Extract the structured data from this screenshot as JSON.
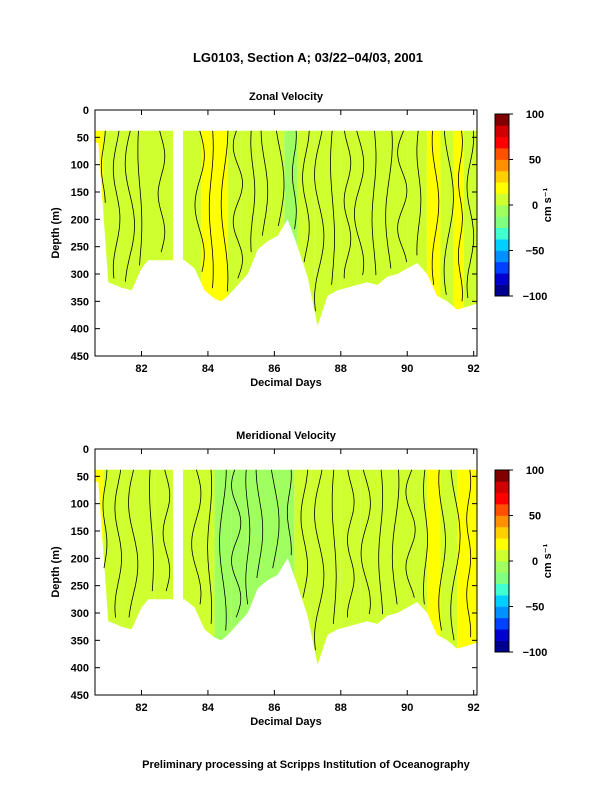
{
  "title": "LG0103, Section A; 03/22–04/03, 2001",
  "footer": "Preliminary processing at Scripps Institution of Oceanography",
  "colors": {
    "cmap": [
      "#00008f",
      "#0000d0",
      "#0040ff",
      "#0090ff",
      "#00d0ff",
      "#40ffd0",
      "#80ff80",
      "#a0ff60",
      "#d0ff30",
      "#ffff00",
      "#ffd000",
      "#ff9000",
      "#ff5000",
      "#ff0000",
      "#d00000",
      "#800000"
    ],
    "contour": "#000000",
    "axes": "#000000"
  },
  "chart_data": [
    {
      "type": "heatmap",
      "title": "Zonal Velocity",
      "xlabel": "Decimal Days",
      "ylabel": "Depth (m)",
      "xlim": [
        80.6,
        92.1
      ],
      "ylim": [
        450,
        0
      ],
      "y_reversed": true,
      "xticks": [
        82,
        84,
        86,
        88,
        90,
        92
      ],
      "yticks": [
        0,
        50,
        100,
        150,
        200,
        250,
        300,
        350,
        400,
        450
      ],
      "colorbar": {
        "label": "cm s⁻¹",
        "range": [
          -100,
          100
        ],
        "ticks": [
          100,
          50,
          0,
          -50,
          -100
        ],
        "tick_labels": [
          "100",
          "50",
          "0",
          "−50",
          "−100"
        ]
      },
      "top_depth": 38,
      "data_gaps": [
        [
          82.95,
          83.25
        ]
      ],
      "max_depth_profile": {
        "x": [
          80.7,
          81.0,
          81.2,
          81.4,
          81.7,
          82.0,
          82.2,
          82.4,
          82.7,
          83.0,
          83.3,
          83.6,
          83.9,
          84.2,
          84.4,
          84.6,
          84.9,
          85.2,
          85.5,
          85.8,
          86.1,
          86.4,
          86.7,
          87.0,
          87.3,
          87.6,
          87.9,
          88.2,
          88.5,
          88.8,
          89.1,
          89.4,
          89.7,
          90.0,
          90.3,
          90.6,
          90.9,
          91.2,
          91.5,
          91.8,
          92.05
        ],
        "depth": [
          60,
          315,
          320,
          325,
          330,
          290,
          275,
          275,
          275,
          275,
          275,
          290,
          330,
          345,
          350,
          340,
          320,
          300,
          255,
          240,
          230,
          200,
          250,
          305,
          395,
          340,
          330,
          325,
          320,
          315,
          320,
          305,
          300,
          290,
          280,
          300,
          340,
          350,
          365,
          360,
          355
        ]
      },
      "velocity_bands": [
        {
          "x0": 80.6,
          "x1": 80.85,
          "value": 22
        },
        {
          "x0": 80.85,
          "x1": 81.3,
          "value": 8
        },
        {
          "x0": 81.3,
          "x1": 81.7,
          "value": 4
        },
        {
          "x0": 81.7,
          "x1": 82.3,
          "value": 10
        },
        {
          "x0": 82.3,
          "x1": 82.95,
          "value": 8
        },
        {
          "x0": 83.25,
          "x1": 83.8,
          "value": 6
        },
        {
          "x0": 83.8,
          "x1": 84.2,
          "value": 14
        },
        {
          "x0": 84.2,
          "x1": 84.6,
          "value": 16
        },
        {
          "x0": 84.6,
          "x1": 85.0,
          "value": 8
        },
        {
          "x0": 85.0,
          "x1": 85.5,
          "value": 12
        },
        {
          "x0": 85.5,
          "x1": 85.9,
          "value": 2
        },
        {
          "x0": 85.9,
          "x1": 86.3,
          "value": 6
        },
        {
          "x0": 86.3,
          "x1": 86.7,
          "value": -8
        },
        {
          "x0": 86.7,
          "x1": 87.2,
          "value": 2
        },
        {
          "x0": 87.2,
          "x1": 87.6,
          "value": 4
        },
        {
          "x0": 87.6,
          "x1": 88.0,
          "value": 8
        },
        {
          "x0": 88.0,
          "x1": 88.5,
          "value": 2
        },
        {
          "x0": 88.5,
          "x1": 89.0,
          "value": 6
        },
        {
          "x0": 89.0,
          "x1": 89.6,
          "value": 4
        },
        {
          "x0": 89.6,
          "x1": 90.0,
          "value": 12
        },
        {
          "x0": 90.0,
          "x1": 90.6,
          "value": 8
        },
        {
          "x0": 90.6,
          "x1": 91.0,
          "value": 20
        },
        {
          "x0": 91.0,
          "x1": 91.4,
          "value": 6
        },
        {
          "x0": 91.4,
          "x1": 91.7,
          "value": 24
        },
        {
          "x0": 91.7,
          "x1": 92.1,
          "value": 4
        }
      ],
      "contour_lines_x": [
        80.85,
        81.25,
        81.65,
        81.95,
        82.6,
        83.75,
        84.1,
        84.5,
        84.9,
        85.35,
        85.7,
        86.15,
        86.6,
        86.95,
        87.35,
        87.75,
        88.2,
        88.55,
        89.0,
        89.45,
        89.85,
        90.35,
        90.85,
        91.25,
        91.6,
        91.9
      ]
    },
    {
      "type": "heatmap",
      "title": "Meridional Velocity",
      "xlabel": "Decimal Days",
      "ylabel": "Depth (m)",
      "xlim": [
        80.6,
        92.1
      ],
      "ylim": [
        450,
        0
      ],
      "y_reversed": true,
      "xticks": [
        82,
        84,
        86,
        88,
        90,
        92
      ],
      "yticks": [
        0,
        50,
        100,
        150,
        200,
        250,
        300,
        350,
        400,
        450
      ],
      "colorbar": {
        "label": "cm s⁻¹",
        "range": [
          -100,
          100
        ],
        "ticks": [
          100,
          50,
          0,
          -50,
          -100
        ],
        "tick_labels": [
          "100",
          "50",
          "0",
          "−50",
          "−100"
        ]
      },
      "top_depth": 38,
      "data_gaps": [
        [
          82.95,
          83.25
        ]
      ],
      "max_depth_profile": {
        "x": [
          80.7,
          81.0,
          81.2,
          81.4,
          81.7,
          82.0,
          82.2,
          82.4,
          82.7,
          83.0,
          83.3,
          83.6,
          83.9,
          84.2,
          84.4,
          84.6,
          84.9,
          85.2,
          85.5,
          85.8,
          86.1,
          86.4,
          86.7,
          87.0,
          87.3,
          87.6,
          87.9,
          88.2,
          88.5,
          88.8,
          89.1,
          89.4,
          89.7,
          90.0,
          90.3,
          90.6,
          90.9,
          91.2,
          91.5,
          91.8,
          92.05
        ],
        "depth": [
          60,
          315,
          320,
          325,
          330,
          290,
          275,
          275,
          275,
          275,
          275,
          290,
          330,
          345,
          350,
          340,
          320,
          300,
          255,
          240,
          230,
          200,
          250,
          305,
          395,
          340,
          330,
          325,
          320,
          315,
          320,
          305,
          300,
          290,
          280,
          300,
          340,
          350,
          365,
          360,
          355
        ]
      },
      "velocity_bands": [
        {
          "x0": 80.6,
          "x1": 80.85,
          "value": 18
        },
        {
          "x0": 80.85,
          "x1": 81.4,
          "value": 4
        },
        {
          "x0": 81.4,
          "x1": 81.8,
          "value": 10
        },
        {
          "x0": 81.8,
          "x1": 82.4,
          "value": 4
        },
        {
          "x0": 82.4,
          "x1": 82.95,
          "value": 8
        },
        {
          "x0": 83.25,
          "x1": 83.7,
          "value": 6
        },
        {
          "x0": 83.7,
          "x1": 84.2,
          "value": 2
        },
        {
          "x0": 84.2,
          "x1": 84.7,
          "value": -2
        },
        {
          "x0": 84.7,
          "x1": 85.2,
          "value": -8
        },
        {
          "x0": 85.2,
          "x1": 85.6,
          "value": -4
        },
        {
          "x0": 85.6,
          "x1": 86.1,
          "value": -12
        },
        {
          "x0": 86.1,
          "x1": 86.6,
          "value": -6
        },
        {
          "x0": 86.6,
          "x1": 87.1,
          "value": 2
        },
        {
          "x0": 87.1,
          "x1": 87.6,
          "value": 8
        },
        {
          "x0": 87.6,
          "x1": 88.0,
          "value": 4
        },
        {
          "x0": 88.0,
          "x1": 88.6,
          "value": 10
        },
        {
          "x0": 88.6,
          "x1": 89.1,
          "value": 4
        },
        {
          "x0": 89.1,
          "x1": 89.6,
          "value": 8
        },
        {
          "x0": 89.6,
          "x1": 90.2,
          "value": 6
        },
        {
          "x0": 90.2,
          "x1": 90.6,
          "value": 10
        },
        {
          "x0": 90.6,
          "x1": 91.0,
          "value": 16
        },
        {
          "x0": 91.0,
          "x1": 91.5,
          "value": 6
        },
        {
          "x0": 91.5,
          "x1": 92.1,
          "value": 14
        }
      ],
      "contour_lines_x": [
        80.9,
        81.3,
        81.75,
        82.3,
        82.75,
        83.65,
        84.05,
        84.45,
        84.85,
        85.2,
        85.55,
        86.0,
        86.45,
        86.9,
        87.35,
        87.8,
        88.3,
        88.75,
        89.2,
        89.65,
        90.1,
        90.55,
        91.05,
        91.45,
        91.85
      ]
    }
  ]
}
